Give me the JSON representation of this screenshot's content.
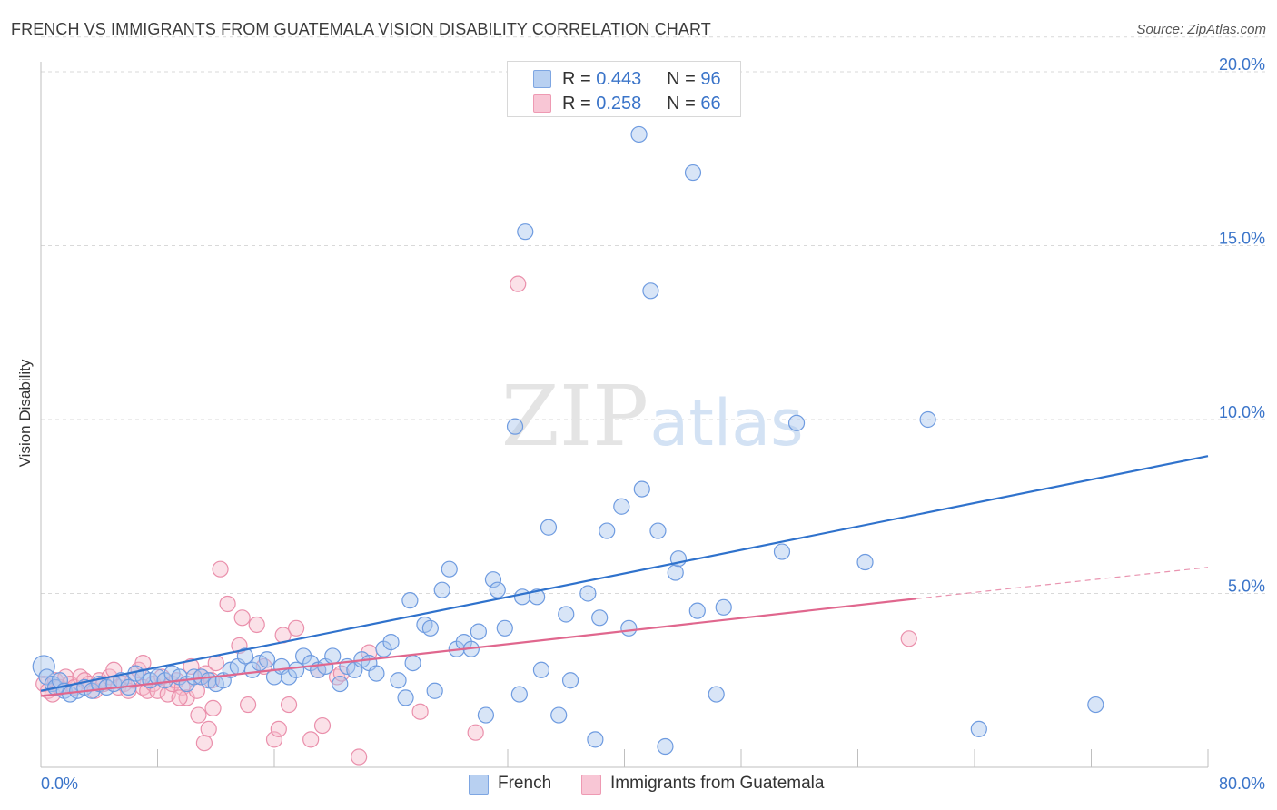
{
  "title": "FRENCH VS IMMIGRANTS FROM GUATEMALA VISION DISABILITY CORRELATION CHART",
  "source": "Source: ZipAtlas.com",
  "watermark": {
    "zip": "ZIP",
    "atlas": "atlas"
  },
  "colors": {
    "french_fill": "#a9c6ee",
    "french_stroke": "#6e9be0",
    "french_line": "#2f72cc",
    "guat_fill": "#f6bccd",
    "guat_stroke": "#ea8fab",
    "guat_line": "#e0678e",
    "axis_label": "#3a74c9",
    "grid": "#d9d9d9"
  },
  "legend": {
    "rows": [
      {
        "r_label": "R =",
        "r_value": "0.443",
        "n_label": "N =",
        "n_value": "96"
      },
      {
        "r_label": "R =",
        "r_value": "0.258",
        "n_label": "N =",
        "n_value": "66"
      }
    ]
  },
  "bottom_legend": {
    "french": "French",
    "guatemala": "Immigrants from Guatemala"
  },
  "chart_data": {
    "type": "scatter",
    "title": "FRENCH VS IMMIGRANTS FROM GUATEMALA VISION DISABILITY CORRELATION CHART",
    "xlabel": "",
    "ylabel": "Vision Disability",
    "xlim": [
      0,
      80
    ],
    "ylim": [
      0,
      21
    ],
    "x_tick_labels": [
      "0.0%",
      "80.0%"
    ],
    "y_ticks": [
      5,
      10,
      15,
      20
    ],
    "y_tick_labels": [
      "5.0%",
      "10.0%",
      "15.0%",
      "20.0%"
    ],
    "grid": true,
    "legend_position": "top-center",
    "series": [
      {
        "name": "French",
        "r": 0.443,
        "n": 96,
        "trend": {
          "x": [
            0,
            80
          ],
          "y": [
            2.2,
            8.95
          ]
        },
        "points": [
          {
            "x": 0.2,
            "y": 2.9
          },
          {
            "x": 0.4,
            "y": 2.6
          },
          {
            "x": 0.8,
            "y": 2.4
          },
          {
            "x": 1.0,
            "y": 2.3
          },
          {
            "x": 1.3,
            "y": 2.5
          },
          {
            "x": 1.6,
            "y": 2.2
          },
          {
            "x": 2.0,
            "y": 2.1
          },
          {
            "x": 2.5,
            "y": 2.2
          },
          {
            "x": 3.0,
            "y": 2.3
          },
          {
            "x": 3.5,
            "y": 2.2
          },
          {
            "x": 4.0,
            "y": 2.4
          },
          {
            "x": 4.5,
            "y": 2.3
          },
          {
            "x": 5.0,
            "y": 2.4
          },
          {
            "x": 5.5,
            "y": 2.5
          },
          {
            "x": 6.0,
            "y": 2.3
          },
          {
            "x": 6.5,
            "y": 2.7
          },
          {
            "x": 7.0,
            "y": 2.6
          },
          {
            "x": 7.5,
            "y": 2.5
          },
          {
            "x": 8.0,
            "y": 2.6
          },
          {
            "x": 8.5,
            "y": 2.5
          },
          {
            "x": 9.0,
            "y": 2.7
          },
          {
            "x": 9.5,
            "y": 2.6
          },
          {
            "x": 10.0,
            "y": 2.4
          },
          {
            "x": 10.5,
            "y": 2.6
          },
          {
            "x": 11.0,
            "y": 2.6
          },
          {
            "x": 11.5,
            "y": 2.5
          },
          {
            "x": 12.0,
            "y": 2.4
          },
          {
            "x": 12.5,
            "y": 2.5
          },
          {
            "x": 13.0,
            "y": 2.8
          },
          {
            "x": 13.5,
            "y": 2.9
          },
          {
            "x": 14.0,
            "y": 3.2
          },
          {
            "x": 14.5,
            "y": 2.8
          },
          {
            "x": 15.0,
            "y": 3.0
          },
          {
            "x": 15.5,
            "y": 3.1
          },
          {
            "x": 16.0,
            "y": 2.6
          },
          {
            "x": 16.5,
            "y": 2.9
          },
          {
            "x": 17.0,
            "y": 2.6
          },
          {
            "x": 17.5,
            "y": 2.8
          },
          {
            "x": 18.0,
            "y": 3.2
          },
          {
            "x": 18.5,
            "y": 3.0
          },
          {
            "x": 19.0,
            "y": 2.8
          },
          {
            "x": 19.5,
            "y": 2.9
          },
          {
            "x": 20.0,
            "y": 3.2
          },
          {
            "x": 20.5,
            "y": 2.4
          },
          {
            "x": 21.0,
            "y": 2.9
          },
          {
            "x": 21.5,
            "y": 2.8
          },
          {
            "x": 22.0,
            "y": 3.1
          },
          {
            "x": 22.5,
            "y": 3.0
          },
          {
            "x": 23.0,
            "y": 2.7
          },
          {
            "x": 23.5,
            "y": 3.4
          },
          {
            "x": 24.0,
            "y": 3.6
          },
          {
            "x": 24.5,
            "y": 2.5
          },
          {
            "x": 25.0,
            "y": 2.0
          },
          {
            "x": 25.3,
            "y": 4.8
          },
          {
            "x": 25.5,
            "y": 3.0
          },
          {
            "x": 26.3,
            "y": 4.1
          },
          {
            "x": 26.7,
            "y": 4.0
          },
          {
            "x": 27.0,
            "y": 2.2
          },
          {
            "x": 27.5,
            "y": 5.1
          },
          {
            "x": 28.0,
            "y": 5.7
          },
          {
            "x": 28.5,
            "y": 3.4
          },
          {
            "x": 29.0,
            "y": 3.6
          },
          {
            "x": 29.5,
            "y": 3.4
          },
          {
            "x": 30.0,
            "y": 3.9
          },
          {
            "x": 30.5,
            "y": 1.5
          },
          {
            "x": 31.0,
            "y": 5.4
          },
          {
            "x": 31.3,
            "y": 5.1
          },
          {
            "x": 31.8,
            "y": 4.0
          },
          {
            "x": 32.5,
            "y": 9.8
          },
          {
            "x": 32.8,
            "y": 2.1
          },
          {
            "x": 33.0,
            "y": 4.9
          },
          {
            "x": 33.2,
            "y": 15.4
          },
          {
            "x": 34.0,
            "y": 4.9
          },
          {
            "x": 34.3,
            "y": 2.8
          },
          {
            "x": 34.8,
            "y": 6.9
          },
          {
            "x": 35.5,
            "y": 1.5
          },
          {
            "x": 36.0,
            "y": 4.4
          },
          {
            "x": 36.3,
            "y": 2.5
          },
          {
            "x": 37.5,
            "y": 5.0
          },
          {
            "x": 38.0,
            "y": 0.8
          },
          {
            "x": 38.3,
            "y": 4.3
          },
          {
            "x": 38.8,
            "y": 6.8
          },
          {
            "x": 39.8,
            "y": 7.5
          },
          {
            "x": 40.3,
            "y": 4.0
          },
          {
            "x": 41.0,
            "y": 18.2
          },
          {
            "x": 41.2,
            "y": 8.0
          },
          {
            "x": 41.8,
            "y": 13.7
          },
          {
            "x": 42.3,
            "y": 6.8
          },
          {
            "x": 42.8,
            "y": 0.6
          },
          {
            "x": 43.5,
            "y": 5.6
          },
          {
            "x": 43.7,
            "y": 6.0
          },
          {
            "x": 44.7,
            "y": 17.1
          },
          {
            "x": 45.0,
            "y": 4.5
          },
          {
            "x": 46.3,
            "y": 2.1
          },
          {
            "x": 46.8,
            "y": 4.6
          },
          {
            "x": 50.8,
            "y": 6.2
          },
          {
            "x": 51.8,
            "y": 9.9
          },
          {
            "x": 56.5,
            "y": 5.9
          },
          {
            "x": 60.8,
            "y": 10.0
          },
          {
            "x": 64.3,
            "y": 1.1
          },
          {
            "x": 72.3,
            "y": 1.8
          }
        ]
      },
      {
        "name": "Immigrants from Guatemala",
        "r": 0.258,
        "n": 66,
        "trend": {
          "x": [
            0,
            60
          ],
          "y": [
            2.05,
            4.85
          ]
        },
        "trend_extension": {
          "x": [
            60,
            80
          ],
          "y": [
            4.85,
            5.75
          ]
        },
        "points": [
          {
            "x": 0.2,
            "y": 2.4
          },
          {
            "x": 0.5,
            "y": 2.2
          },
          {
            "x": 0.8,
            "y": 2.1
          },
          {
            "x": 1.0,
            "y": 2.5
          },
          {
            "x": 1.3,
            "y": 2.3
          },
          {
            "x": 1.7,
            "y": 2.6
          },
          {
            "x": 2.0,
            "y": 2.4
          },
          {
            "x": 2.3,
            "y": 2.3
          },
          {
            "x": 2.7,
            "y": 2.6
          },
          {
            "x": 3.0,
            "y": 2.5
          },
          {
            "x": 3.3,
            "y": 2.4
          },
          {
            "x": 3.7,
            "y": 2.2
          },
          {
            "x": 4.0,
            "y": 2.5
          },
          {
            "x": 4.3,
            "y": 2.4
          },
          {
            "x": 4.7,
            "y": 2.6
          },
          {
            "x": 5.0,
            "y": 2.8
          },
          {
            "x": 5.3,
            "y": 2.3
          },
          {
            "x": 5.7,
            "y": 2.4
          },
          {
            "x": 6.0,
            "y": 2.2
          },
          {
            "x": 6.3,
            "y": 2.5
          },
          {
            "x": 6.7,
            "y": 2.8
          },
          {
            "x": 7.0,
            "y": 2.3
          },
          {
            "x": 7.3,
            "y": 2.2
          },
          {
            "x": 7.7,
            "y": 2.4
          },
          {
            "x": 8.0,
            "y": 2.2
          },
          {
            "x": 8.3,
            "y": 2.6
          },
          {
            "x": 8.7,
            "y": 2.1
          },
          {
            "x": 9.0,
            "y": 2.4
          },
          {
            "x": 9.3,
            "y": 2.5
          },
          {
            "x": 9.7,
            "y": 2.3
          },
          {
            "x": 10.0,
            "y": 2.0
          },
          {
            "x": 10.3,
            "y": 2.9
          },
          {
            "x": 10.7,
            "y": 2.2
          },
          {
            "x": 11.0,
            "y": 2.6
          },
          {
            "x": 11.3,
            "y": 2.7
          },
          {
            "x": 11.7,
            "y": 2.5
          },
          {
            "x": 12.0,
            "y": 3.0
          },
          {
            "x": 7.0,
            "y": 3.0
          },
          {
            "x": 9.5,
            "y": 2.0
          },
          {
            "x": 10.8,
            "y": 1.5
          },
          {
            "x": 11.5,
            "y": 1.1
          },
          {
            "x": 11.8,
            "y": 1.7
          },
          {
            "x": 11.2,
            "y": 0.7
          },
          {
            "x": 12.3,
            "y": 5.7
          },
          {
            "x": 12.8,
            "y": 4.7
          },
          {
            "x": 13.8,
            "y": 4.3
          },
          {
            "x": 13.6,
            "y": 3.5
          },
          {
            "x": 14.2,
            "y": 1.8
          },
          {
            "x": 14.8,
            "y": 4.1
          },
          {
            "x": 15.3,
            "y": 2.9
          },
          {
            "x": 16.0,
            "y": 0.8
          },
          {
            "x": 16.3,
            "y": 1.1
          },
          {
            "x": 16.6,
            "y": 3.8
          },
          {
            "x": 17.0,
            "y": 1.8
          },
          {
            "x": 17.5,
            "y": 4.0
          },
          {
            "x": 18.5,
            "y": 0.8
          },
          {
            "x": 19.0,
            "y": 2.8
          },
          {
            "x": 19.3,
            "y": 1.2
          },
          {
            "x": 20.3,
            "y": 2.6
          },
          {
            "x": 20.6,
            "y": 2.7
          },
          {
            "x": 21.8,
            "y": 0.3
          },
          {
            "x": 22.5,
            "y": 3.3
          },
          {
            "x": 26.0,
            "y": 1.6
          },
          {
            "x": 29.8,
            "y": 1.0
          },
          {
            "x": 32.7,
            "y": 13.9
          },
          {
            "x": 59.5,
            "y": 3.7
          }
        ]
      }
    ]
  }
}
